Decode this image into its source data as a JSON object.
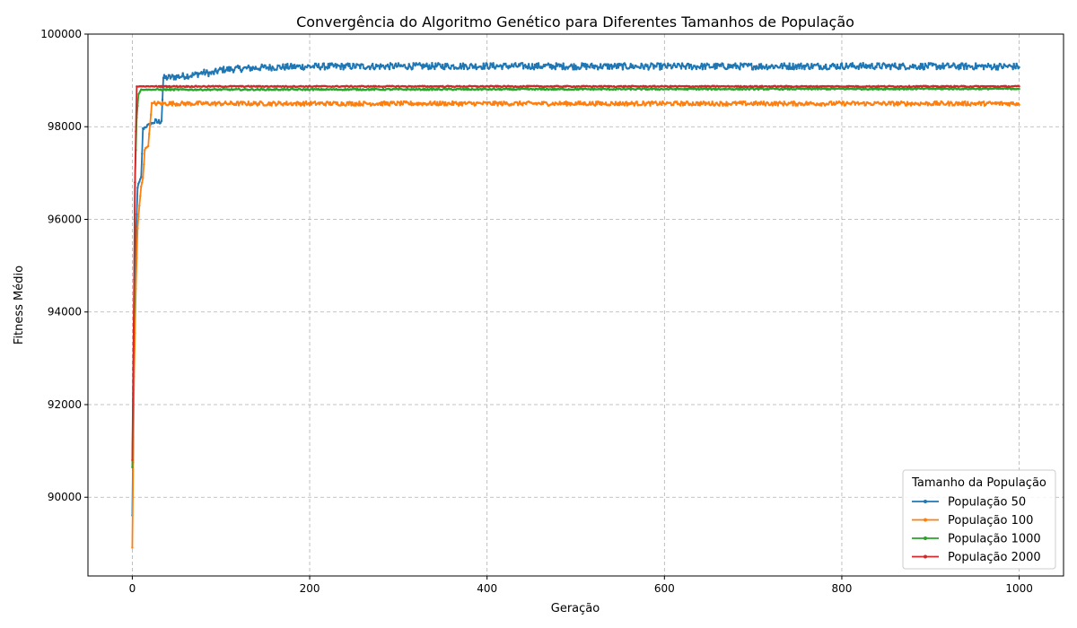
{
  "chart_data": {
    "type": "line",
    "title": "Convergência do Algoritmo Genético para Diferentes Tamanhos de População",
    "xlabel": "Geração",
    "ylabel": "Fitness Médio",
    "xlim": [
      -50,
      1050
    ],
    "ylim": [
      88300,
      100000
    ],
    "xticks": [
      0,
      200,
      400,
      600,
      800,
      1000
    ],
    "yticks": [
      90000,
      92000,
      94000,
      96000,
      98000,
      100000
    ],
    "grid": true,
    "legend": {
      "title": "Tamanho da População",
      "placement": "lower-right"
    },
    "series": [
      {
        "name": "População 50",
        "color": "#1f77b4",
        "key_points": [
          [
            0,
            89600
          ],
          [
            2,
            93000
          ],
          [
            4,
            95500
          ],
          [
            6,
            96700
          ],
          [
            10,
            96900
          ],
          [
            12,
            97950
          ],
          [
            15,
            98000
          ],
          [
            20,
            98050
          ],
          [
            25,
            98100
          ],
          [
            30,
            98100
          ],
          [
            33,
            98150
          ],
          [
            35,
            99050
          ],
          [
            50,
            99080
          ],
          [
            70,
            99120
          ],
          [
            80,
            99170
          ],
          [
            90,
            99150
          ],
          [
            100,
            99230
          ],
          [
            150,
            99280
          ],
          [
            200,
            99300
          ],
          [
            400,
            99310
          ],
          [
            600,
            99300
          ],
          [
            800,
            99310
          ],
          [
            1000,
            99300
          ]
        ],
        "noise": 70
      },
      {
        "name": "População 100",
        "color": "#ff7f0e",
        "key_points": [
          [
            0,
            88900
          ],
          [
            2,
            92600
          ],
          [
            4,
            94500
          ],
          [
            6,
            95800
          ],
          [
            8,
            96300
          ],
          [
            10,
            96700
          ],
          [
            12,
            96900
          ],
          [
            14,
            97500
          ],
          [
            18,
            97600
          ],
          [
            20,
            98050
          ],
          [
            22,
            98500
          ],
          [
            100,
            98500
          ],
          [
            1000,
            98500
          ]
        ],
        "noise": 45
      },
      {
        "name": "População 1000",
        "color": "#2ca02c",
        "key_points": [
          [
            0,
            90650
          ],
          [
            2,
            94000
          ],
          [
            3,
            96800
          ],
          [
            5,
            98200
          ],
          [
            7,
            98700
          ],
          [
            10,
            98800
          ],
          [
            1000,
            98820
          ]
        ],
        "noise": 15
      },
      {
        "name": "População 2000",
        "color": "#d62728",
        "key_points": [
          [
            0,
            90800
          ],
          [
            2,
            94700
          ],
          [
            3,
            96800
          ],
          [
            4,
            97900
          ],
          [
            5,
            98870
          ],
          [
            1000,
            98870
          ]
        ],
        "noise": 12
      }
    ]
  }
}
